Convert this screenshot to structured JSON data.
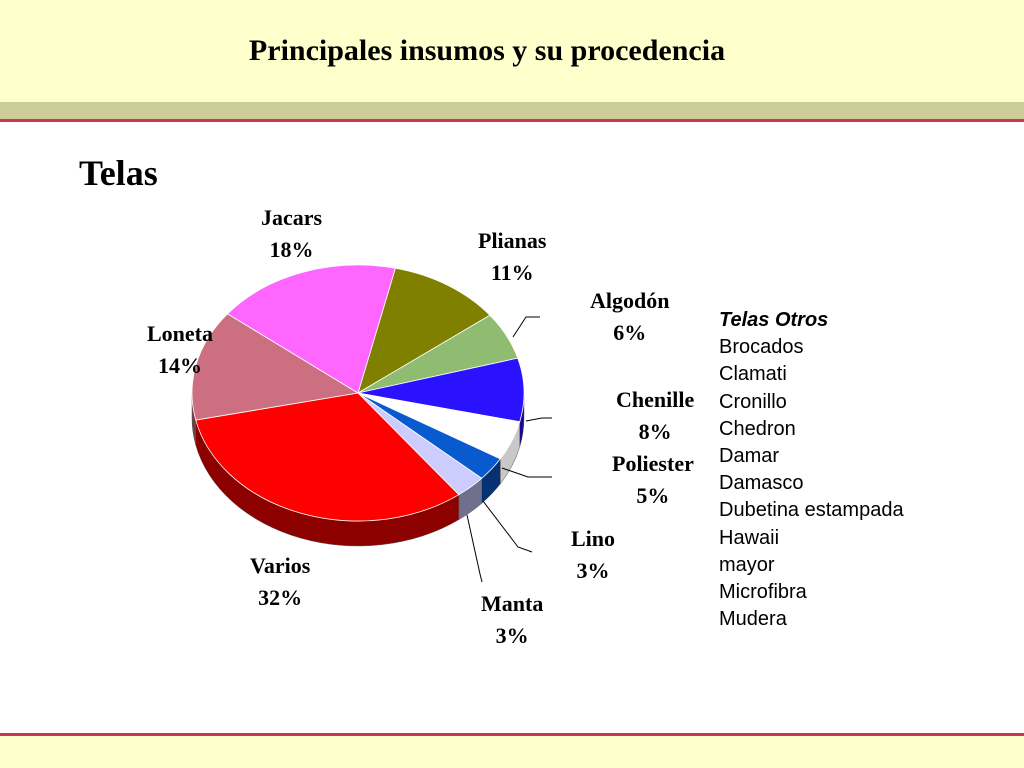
{
  "header": {
    "title": "Principales insumos y su procedencia"
  },
  "section": {
    "heading": "Telas"
  },
  "chart_data": {
    "type": "pie",
    "title": "",
    "slices": [
      {
        "label": "Plianas",
        "value": 11,
        "value_label": "11%",
        "color": "#808000"
      },
      {
        "label": "Algodón",
        "value": 6,
        "value_label": "6%",
        "color": "#8fbc70"
      },
      {
        "label": "Chenille",
        "value": 8,
        "value_label": "8%",
        "color": "#2b12ff"
      },
      {
        "label": "Poliester",
        "value": 5,
        "value_label": "5%",
        "color": "#ffffff"
      },
      {
        "label": "Lino",
        "value": 3,
        "value_label": "3%",
        "color": "#0a5acf"
      },
      {
        "label": "Manta",
        "value": 3,
        "value_label": "3%",
        "color": "#ccccff"
      },
      {
        "label": "Varios",
        "value": 32,
        "value_label": "32%",
        "color": "#ff0000"
      },
      {
        "label": "Loneta",
        "value": 14,
        "value_label": "14%",
        "color": "#cc6f80"
      },
      {
        "label": "Jacars",
        "value": 18,
        "value_label": "18%",
        "color": "#ff66ff"
      }
    ],
    "others_legend": {
      "title": "Telas Otros",
      "items": [
        "Brocados",
        "Clamati",
        "Cronillo",
        "Chedron",
        "Damar",
        "Damasco",
        "Dubetina estampada",
        "Hawaii",
        "mayor",
        "Microfibra",
        "Mudera"
      ]
    }
  }
}
